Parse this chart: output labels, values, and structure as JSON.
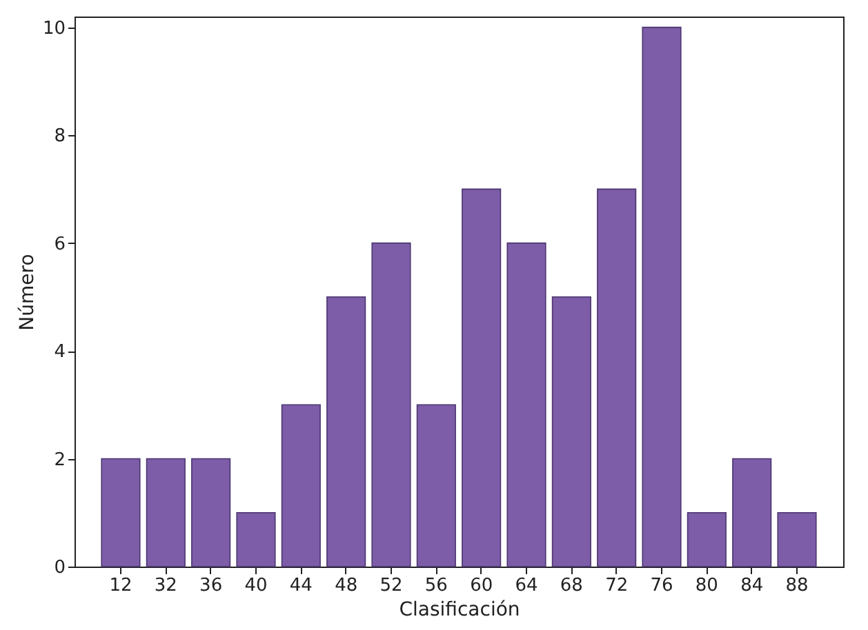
{
  "chart_data": {
    "type": "bar",
    "xlabel": "Clasificación",
    "ylabel": "Número",
    "categories": [
      "12",
      "32",
      "36",
      "40",
      "44",
      "48",
      "52",
      "56",
      "60",
      "64",
      "68",
      "72",
      "76",
      "80",
      "84",
      "88"
    ],
    "values": [
      2,
      2,
      2,
      1,
      3,
      5,
      6,
      3,
      7,
      6,
      5,
      7,
      10,
      1,
      2,
      1
    ],
    "color": "#7d5ca8",
    "ylim": [
      0,
      10.2
    ],
    "yticks": [
      0,
      2,
      4,
      6,
      8,
      10
    ],
    "grid": false
  }
}
